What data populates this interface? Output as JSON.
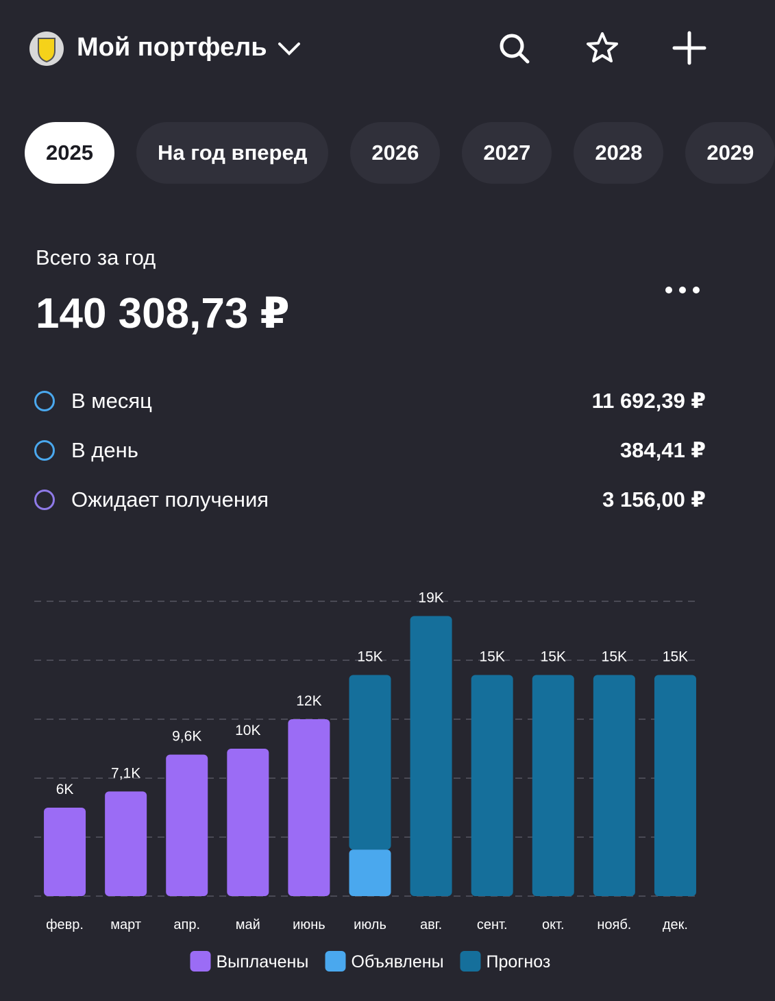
{
  "header": {
    "title": "Мой портфель"
  },
  "tabs": [
    "2025",
    "На год вперед",
    "2026",
    "2027",
    "2028",
    "2029"
  ],
  "summary": {
    "label": "Всего за год",
    "total": "140 308,73 ₽",
    "rows": [
      {
        "label": "В месяц",
        "value": "11 692,39 ₽"
      },
      {
        "label": "В день",
        "value": "384,41 ₽"
      },
      {
        "label": "Ожидает получения",
        "value": "3 156,00 ₽"
      }
    ]
  },
  "chart_data": {
    "type": "bar",
    "stacked": true,
    "categories": [
      "февр.",
      "март",
      "апр.",
      "май",
      "июнь",
      "июль",
      "авг.",
      "сент.",
      "окт.",
      "нояб.",
      "дек."
    ],
    "series": [
      {
        "name": "Выплачены",
        "color": "#9b6cf5",
        "values": [
          6000,
          7100,
          9600,
          10000,
          12000,
          null,
          null,
          null,
          null,
          null,
          null
        ]
      },
      {
        "name": "Объявлены",
        "color": "#4aa8ee",
        "values": [
          null,
          null,
          null,
          null,
          null,
          3156,
          null,
          null,
          null,
          null,
          null
        ]
      },
      {
        "name": "Прогноз",
        "color": "#156f9b",
        "values": [
          null,
          null,
          null,
          null,
          null,
          11844,
          19000,
          15000,
          15000,
          15000,
          15000
        ]
      }
    ],
    "totals": [
      6000,
      7100,
      9600,
      10000,
      12000,
      15000,
      19000,
      15000,
      15000,
      15000,
      15000
    ],
    "total_labels": [
      "6K",
      "7,1K",
      "9,6K",
      "10K",
      "12K",
      "15K",
      "19K",
      "15K",
      "15K",
      "15K",
      "15K"
    ],
    "ylim": [
      0,
      20000
    ],
    "yticks": [
      0,
      4000,
      8000,
      12000,
      16000,
      20000
    ],
    "grid": true
  }
}
